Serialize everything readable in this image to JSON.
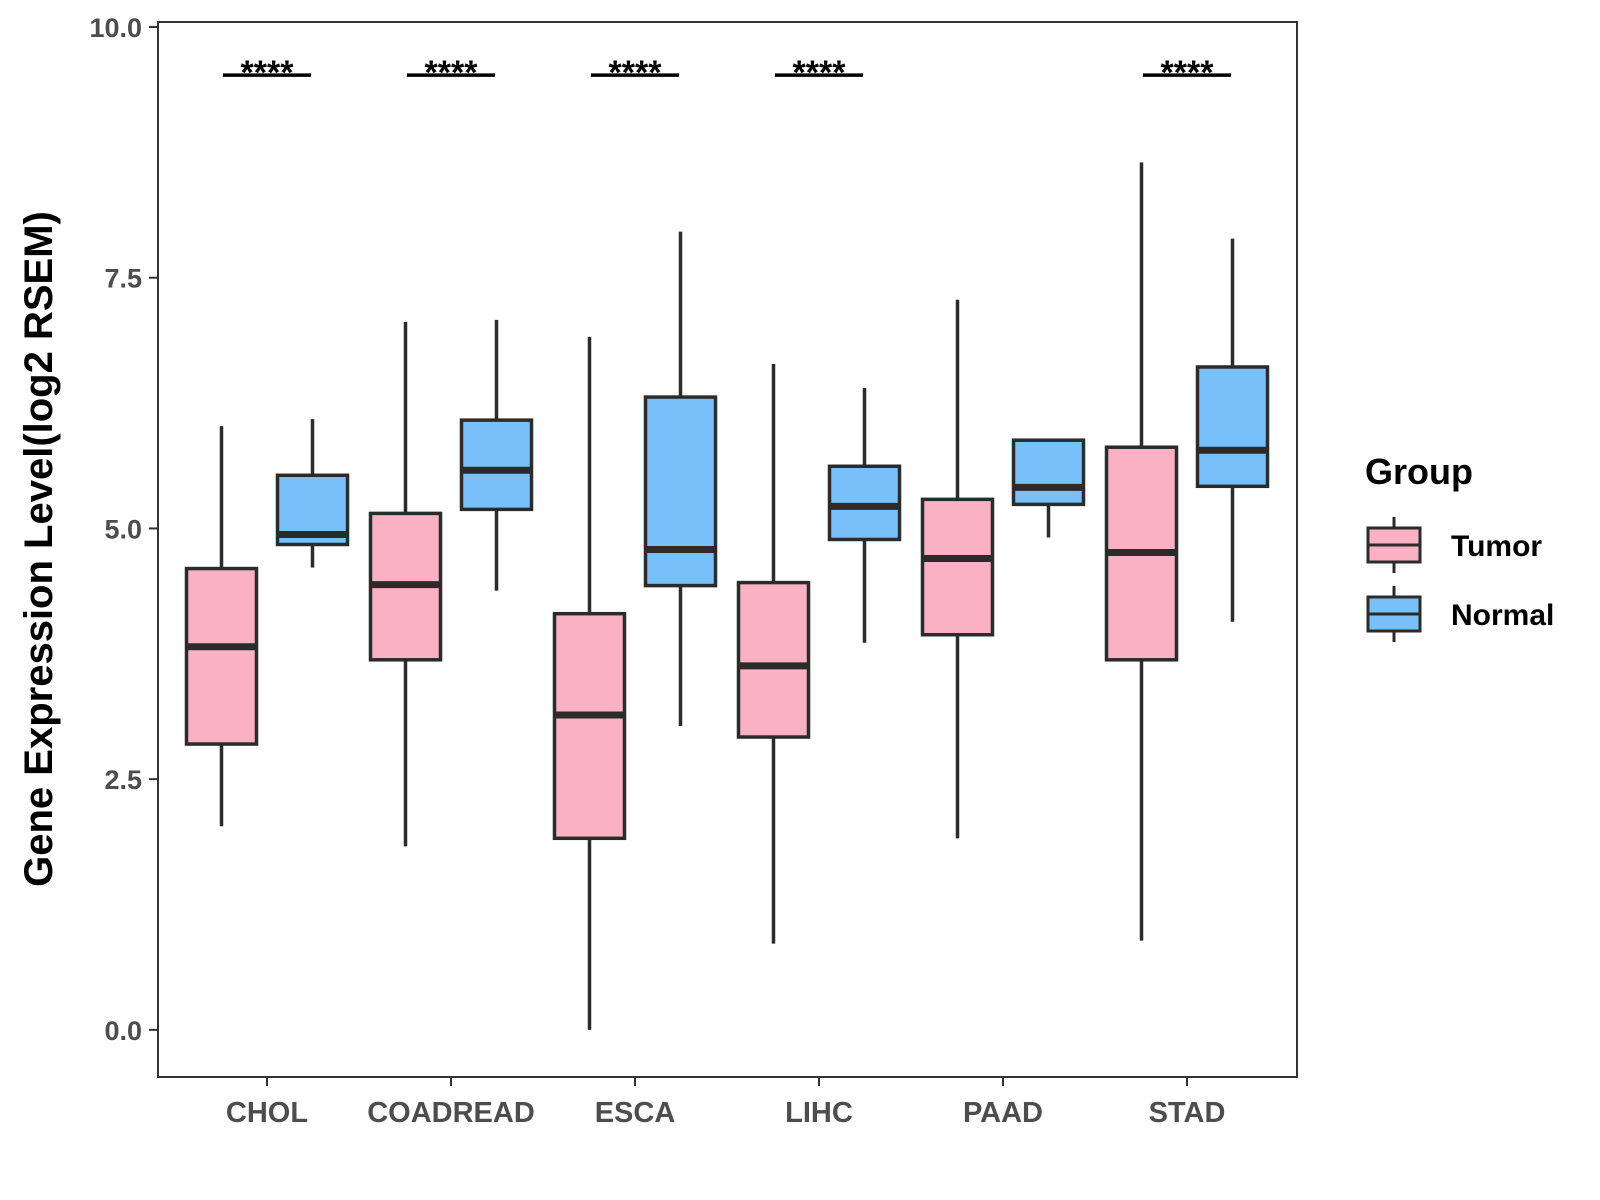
{
  "chart_data": {
    "type": "boxplot",
    "title": "",
    "xlabel": "",
    "ylabel": "Gene Expression Level(log2 RSEM)",
    "ylim": [
      -0.47,
      10.05
    ],
    "yticks": [
      0.0,
      2.5,
      5.0,
      7.5,
      10.0
    ],
    "ytick_labels": [
      "0.0",
      "2.5",
      "5.0",
      "7.5",
      "10.0"
    ],
    "categories": [
      "CHOL",
      "COADREAD",
      "ESCA",
      "LIHC",
      "PAAD",
      "STAD"
    ],
    "legend": {
      "title": "Group",
      "position": "right",
      "entries": [
        "Tumor",
        "Normal"
      ]
    },
    "series": [
      {
        "name": "Tumor",
        "color": "#fbb1c4",
        "boxes": [
          {
            "min": 2.03,
            "q1": 2.85,
            "median": 3.82,
            "q3": 4.6,
            "max": 6.02
          },
          {
            "min": 1.83,
            "q1": 3.69,
            "median": 4.44,
            "q3": 5.15,
            "max": 7.06
          },
          {
            "min": 0.0,
            "q1": 1.91,
            "median": 3.14,
            "q3": 4.15,
            "max": 6.91
          },
          {
            "min": 0.86,
            "q1": 2.92,
            "median": 3.63,
            "q3": 4.46,
            "max": 6.64
          },
          {
            "min": 1.91,
            "q1": 3.94,
            "median": 4.7,
            "q3": 5.29,
            "max": 7.28
          },
          {
            "min": 0.89,
            "q1": 3.69,
            "median": 4.76,
            "q3": 5.81,
            "max": 8.65
          }
        ]
      },
      {
        "name": "Normal",
        "color": "#77c1f8",
        "boxes": [
          {
            "min": 4.61,
            "q1": 4.84,
            "median": 4.94,
            "q3": 5.53,
            "max": 6.09
          },
          {
            "min": 4.38,
            "q1": 5.19,
            "median": 5.58,
            "q3": 6.08,
            "max": 7.08
          },
          {
            "min": 3.03,
            "q1": 4.43,
            "median": 4.79,
            "q3": 6.31,
            "max": 7.96
          },
          {
            "min": 3.86,
            "q1": 4.89,
            "median": 5.22,
            "q3": 5.62,
            "max": 6.4
          },
          {
            "min": 4.91,
            "q1": 5.24,
            "median": 5.41,
            "q3": 5.88,
            "max": 5.88
          },
          {
            "min": 4.07,
            "q1": 5.42,
            "median": 5.78,
            "q3": 6.61,
            "max": 7.89
          }
        ]
      }
    ],
    "annotations": [
      {
        "category": "CHOL",
        "text": "****"
      },
      {
        "category": "COADREAD",
        "text": "****"
      },
      {
        "category": "ESCA",
        "text": "****"
      },
      {
        "category": "LIHC",
        "text": "****"
      },
      {
        "category": "STAD",
        "text": "****"
      }
    ],
    "annotation_y": 9.52
  }
}
